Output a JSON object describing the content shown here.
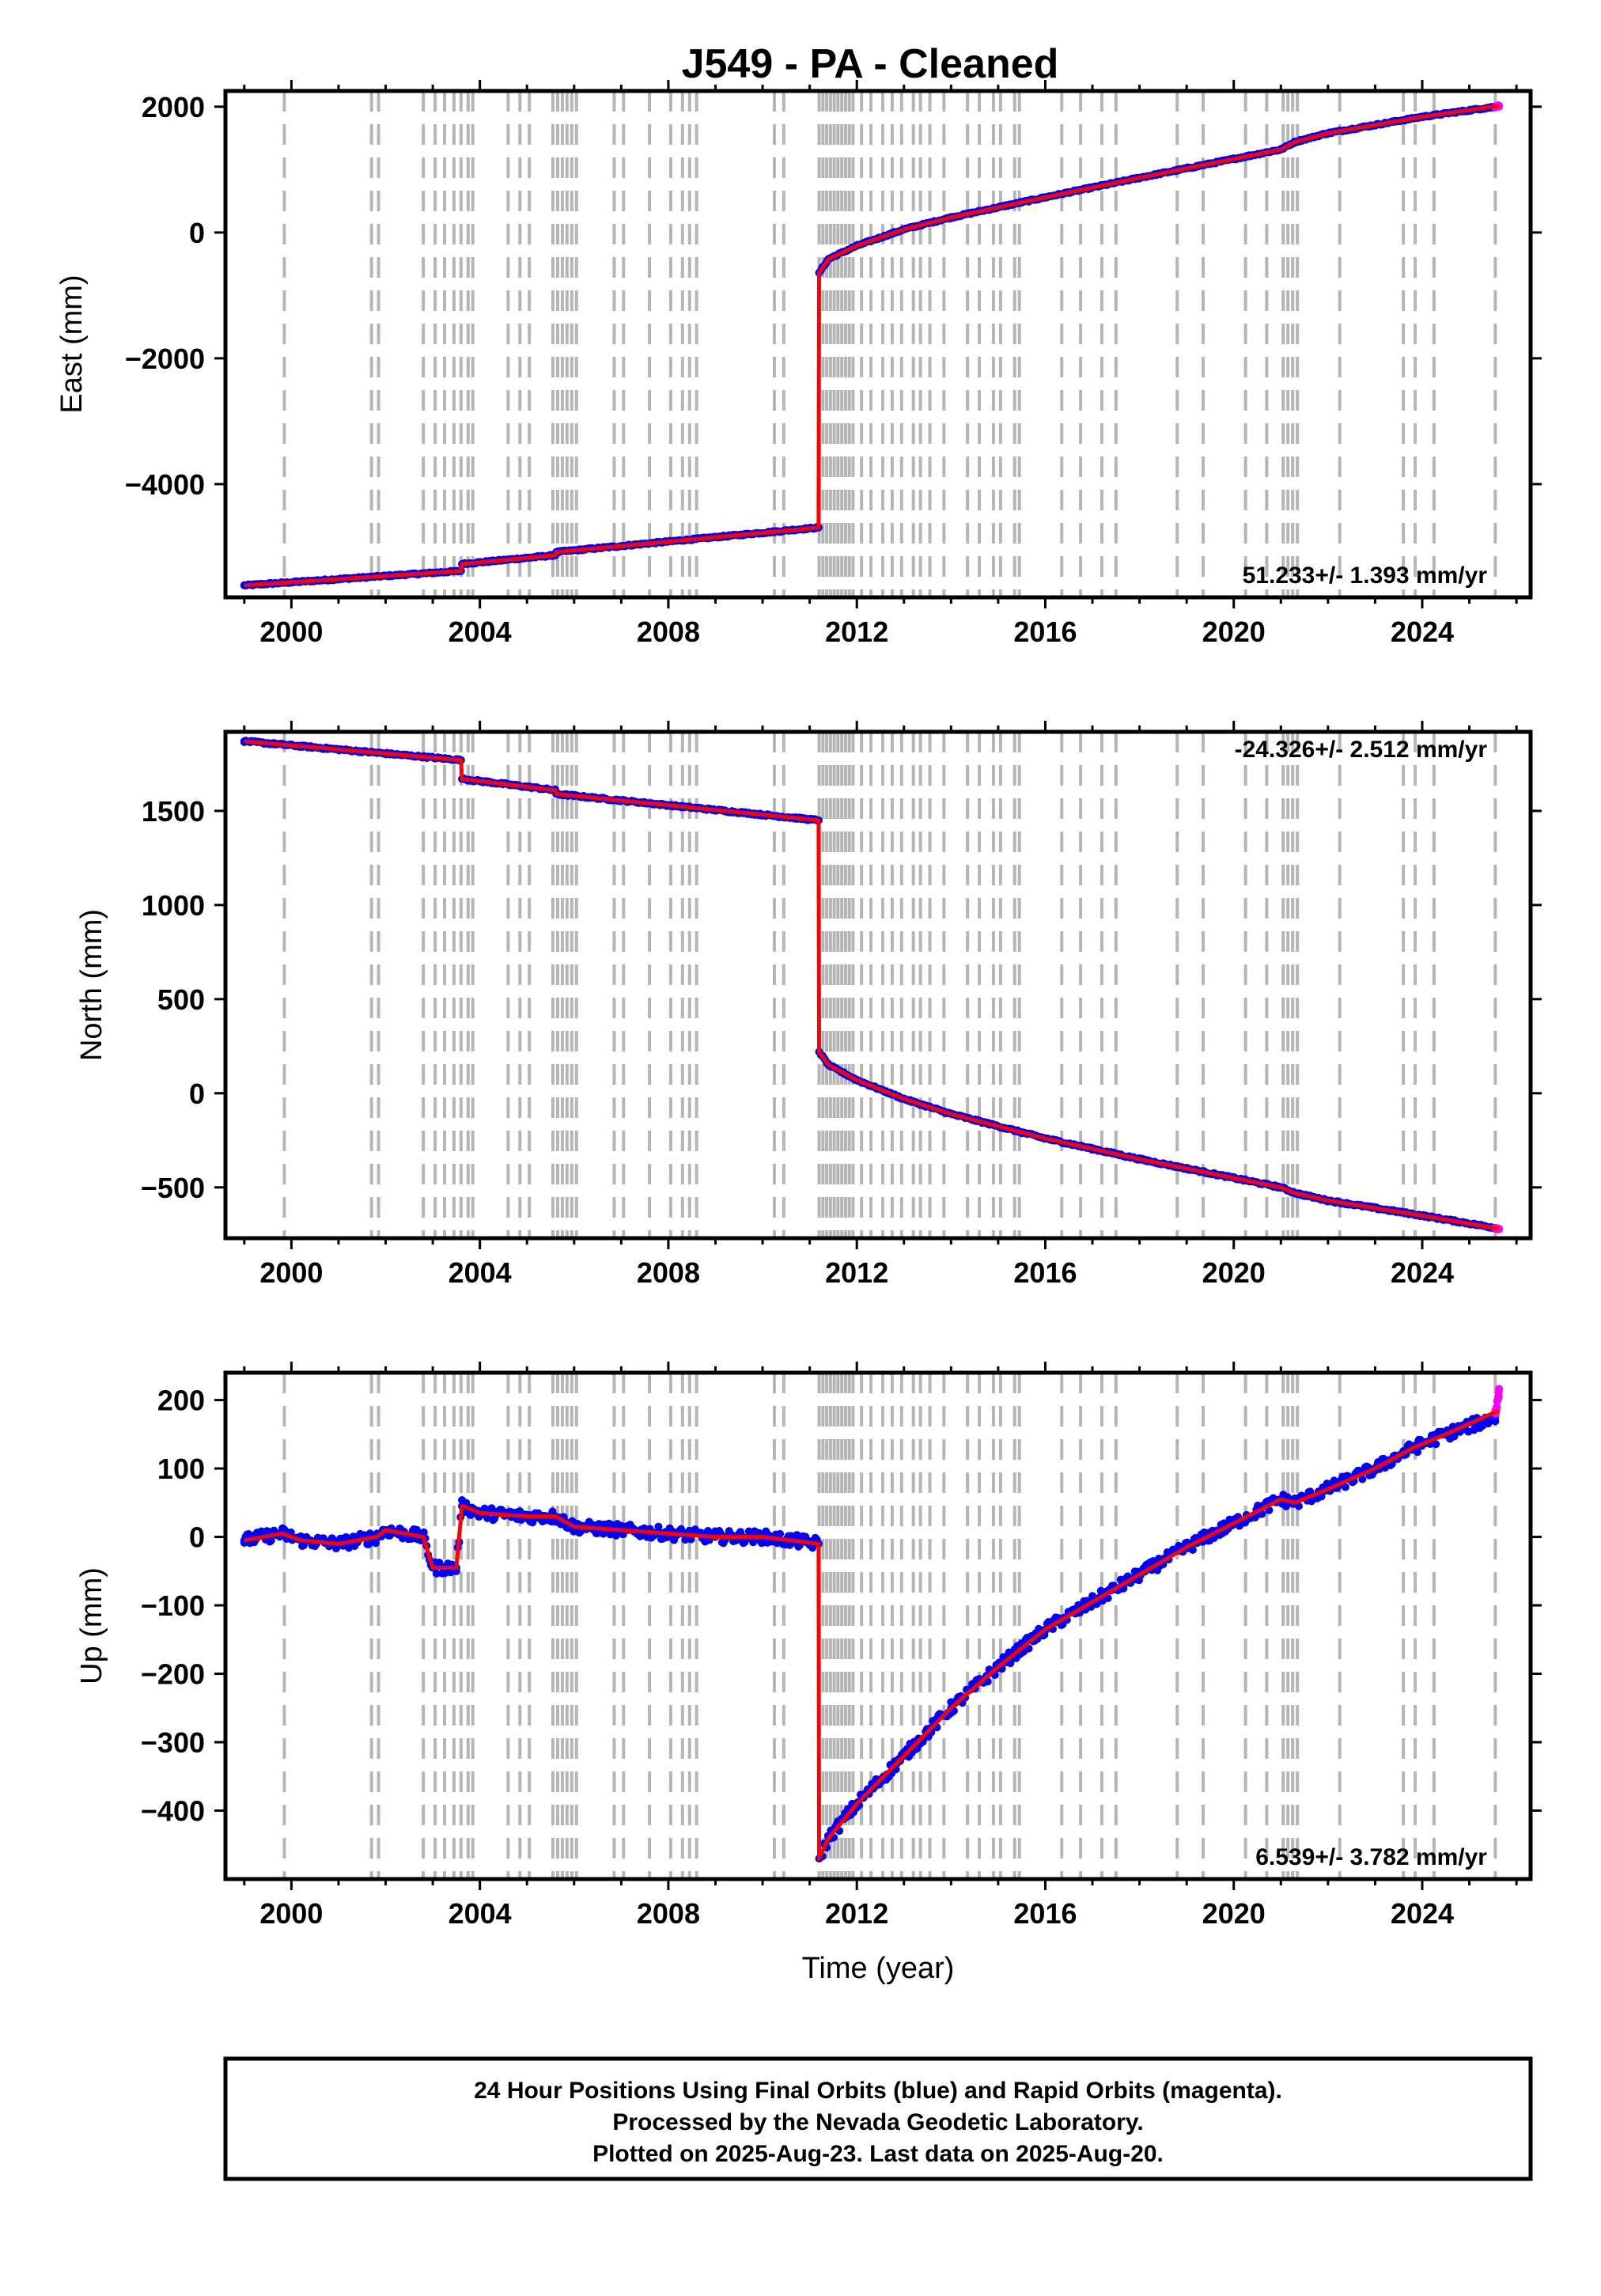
{
  "title": "J549  - PA - Cleaned",
  "colors": {
    "final_orbit_points": "#0000ff",
    "rapid_orbit_points": "#ff00ff",
    "model_line": "#ff0000",
    "event_lines": "#b5b5b5",
    "frame": "#000000"
  },
  "footer": {
    "line1": "24 Hour Positions Using Final Orbits (blue) and Rapid Orbits (magenta).",
    "line2": "Processed by the Nevada Geodetic Laboratory.",
    "line3": "Plotted on 2025-Aug-23. Last data on 2025-Aug-20."
  },
  "chart_data": [
    {
      "type": "scatter",
      "component": "east",
      "title": "J549  - PA - Cleaned",
      "ylabel": "East (mm)",
      "xlabel": "",
      "xlim": [
        1998.6,
        2026.3
      ],
      "ylim": [
        -5800,
        2250
      ],
      "xticks": [
        2000,
        2004,
        2008,
        2012,
        2016,
        2020,
        2024
      ],
      "yticks": [
        2000,
        0,
        -2000,
        -4000
      ],
      "ytick_labels": [
        "2000",
        "0",
        "−2000",
        "−4000"
      ],
      "rate_label": "51.233+/- 1.393 mm/yr",
      "rate_position": "bottom-right",
      "noise": 12,
      "series": [
        {
          "name": "Final Orbits",
          "color": "#0000ff",
          "role": "points",
          "x": [
            1999.0,
            2003.6,
            2003.62,
            2005.6,
            2005.62,
            2011.19,
            2011.2,
            2011.4,
            2012.0,
            2013.0,
            2014.0,
            2016.0,
            2018.0,
            2020.0,
            2021.0,
            2021.3,
            2022.0,
            2024.0,
            2025.55
          ],
          "y": [
            -5610,
            -5380,
            -5270,
            -5130,
            -5080,
            -4690,
            -640,
            -420,
            -210,
            50,
            240,
            560,
            870,
            1170,
            1320,
            1440,
            1580,
            1840,
            2000
          ]
        },
        {
          "name": "Rapid Orbits",
          "color": "#ff00ff",
          "role": "points",
          "x": [
            2025.55,
            2025.63
          ],
          "y": [
            2000,
            2015
          ]
        },
        {
          "name": "Model",
          "color": "#ff0000",
          "role": "line",
          "x": [
            1999.0,
            2003.6,
            2003.62,
            2005.6,
            2005.62,
            2011.19,
            2011.2,
            2011.4,
            2012.0,
            2013.0,
            2014.0,
            2016.0,
            2018.0,
            2020.0,
            2021.0,
            2021.3,
            2022.0,
            2024.0,
            2025.63
          ],
          "y": [
            -5610,
            -5380,
            -5270,
            -5130,
            -5080,
            -4690,
            -640,
            -420,
            -210,
            50,
            240,
            560,
            870,
            1170,
            1320,
            1440,
            1580,
            1840,
            2015
          ]
        }
      ]
    },
    {
      "type": "scatter",
      "component": "north",
      "ylabel": "North (mm)",
      "xlabel": "",
      "xlim": [
        1998.6,
        2026.3
      ],
      "ylim": [
        -770,
        1920
      ],
      "xticks": [
        2000,
        2004,
        2008,
        2012,
        2016,
        2020,
        2024
      ],
      "yticks": [
        1500,
        1000,
        500,
        0,
        -500
      ],
      "ytick_labels": [
        "1500",
        "1000",
        "500",
        "0",
        "−500"
      ],
      "rate_label": "-24.326+/- 2.512 mm/yr",
      "rate_position": "top-right",
      "noise": 5,
      "series": [
        {
          "name": "Final Orbits",
          "color": "#0000ff",
          "role": "points",
          "x": [
            1999.0,
            2003.6,
            2003.62,
            2005.6,
            2005.62,
            2011.19,
            2011.2,
            2011.4,
            2012.0,
            2013.0,
            2014.0,
            2016.0,
            2018.0,
            2020.0,
            2021.0,
            2021.3,
            2022.0,
            2024.0,
            2025.55
          ],
          "y": [
            1870,
            1770,
            1670,
            1610,
            1590,
            1450,
            220,
            150,
            70,
            -30,
            -110,
            -240,
            -350,
            -450,
            -500,
            -530,
            -570,
            -650,
            -715
          ]
        },
        {
          "name": "Rapid Orbits",
          "color": "#ff00ff",
          "role": "points",
          "x": [
            2025.55,
            2025.63
          ],
          "y": [
            -715,
            -720
          ]
        },
        {
          "name": "Model",
          "color": "#ff0000",
          "role": "line",
          "x": [
            1999.0,
            2003.6,
            2003.62,
            2005.6,
            2005.62,
            2011.19,
            2011.2,
            2011.4,
            2012.0,
            2013.0,
            2014.0,
            2016.0,
            2018.0,
            2020.0,
            2021.0,
            2021.3,
            2022.0,
            2024.0,
            2025.63
          ],
          "y": [
            1870,
            1770,
            1670,
            1610,
            1590,
            1450,
            220,
            150,
            70,
            -30,
            -110,
            -240,
            -350,
            -450,
            -500,
            -530,
            -570,
            -650,
            -720
          ]
        }
      ]
    },
    {
      "type": "scatter",
      "component": "up",
      "ylabel": "Up (mm)",
      "xlabel": "Time (year)",
      "xlim": [
        1998.6,
        2026.3
      ],
      "ylim": [
        -500,
        240
      ],
      "xticks": [
        2000,
        2004,
        2008,
        2012,
        2016,
        2020,
        2024
      ],
      "yticks": [
        200,
        100,
        0,
        -100,
        -200,
        -300,
        -400
      ],
      "ytick_labels": [
        "200",
        "100",
        "0",
        "−100",
        "−200",
        "−300",
        "−400"
      ],
      "rate_label": "6.539+/- 3.782 mm/yr",
      "rate_position": "bottom-right",
      "noise": 9,
      "series": [
        {
          "name": "Final Orbits",
          "color": "#0000ff",
          "role": "points",
          "x": [
            1999.0,
            1999.8,
            2000.2,
            2001.0,
            2001.8,
            2002.0,
            2002.8,
            2003.0,
            2003.5,
            2003.62,
            2003.64,
            2004.0,
            2005.0,
            2005.6,
            2006.0,
            2007.0,
            2008.0,
            2009.0,
            2010.0,
            2011.19,
            2011.2,
            2011.4,
            2012.0,
            2013.0,
            2014.0,
            2015.0,
            2016.0,
            2017.0,
            2018.0,
            2019.0,
            2020.0,
            2021.0,
            2021.3,
            2022.0,
            2023.0,
            2023.8,
            2024.5,
            2025.55
          ],
          "y": [
            -5,
            5,
            -5,
            -10,
            0,
            10,
            0,
            -45,
            -45,
            45,
            45,
            35,
            30,
            30,
            15,
            10,
            5,
            0,
            0,
            -10,
            -470,
            -440,
            -390,
            -320,
            -250,
            -190,
            -135,
            -95,
            -55,
            -15,
            20,
            55,
            50,
            70,
            100,
            130,
            150,
            175
          ]
        },
        {
          "name": "Rapid Orbits",
          "color": "#ff00ff",
          "role": "points",
          "x": [
            2025.55,
            2025.58,
            2025.6,
            2025.62,
            2025.63
          ],
          "y": [
            180,
            190,
            200,
            210,
            215
          ]
        },
        {
          "name": "Model",
          "color": "#ff0000",
          "role": "line",
          "x": [
            1999.0,
            1999.8,
            2000.2,
            2001.0,
            2001.8,
            2002.0,
            2002.8,
            2003.0,
            2003.5,
            2003.62,
            2003.64,
            2004.0,
            2005.0,
            2005.6,
            2006.0,
            2007.0,
            2008.0,
            2009.0,
            2010.0,
            2011.19,
            2011.2,
            2011.4,
            2012.0,
            2013.0,
            2014.0,
            2015.0,
            2016.0,
            2017.0,
            2018.0,
            2019.0,
            2020.0,
            2021.0,
            2021.3,
            2022.0,
            2023.0,
            2023.8,
            2024.5,
            2025.63
          ],
          "y": [
            -5,
            5,
            -5,
            -10,
            0,
            10,
            0,
            -45,
            -45,
            45,
            45,
            35,
            30,
            30,
            15,
            10,
            5,
            0,
            0,
            -10,
            -470,
            -440,
            -390,
            -320,
            -250,
            -190,
            -135,
            -95,
            -55,
            -15,
            20,
            55,
            50,
            70,
            100,
            130,
            150,
            185
          ]
        }
      ]
    }
  ],
  "event_years": [
    1999.85,
    2001.7,
    2001.85,
    2002.8,
    2003.05,
    2003.25,
    2003.45,
    2003.6,
    2003.75,
    2003.85,
    2004.6,
    2004.85,
    2005.05,
    2005.55,
    2005.65,
    2005.75,
    2005.85,
    2005.95,
    2006.05,
    2006.85,
    2007.05,
    2007.6,
    2008.05,
    2008.3,
    2008.45,
    2008.6,
    2010.25,
    2010.45,
    2011.2,
    2011.28,
    2011.36,
    2011.44,
    2011.52,
    2011.6,
    2011.68,
    2011.76,
    2011.84,
    2011.92,
    2012.1,
    2012.3,
    2012.55,
    2012.75,
    2012.95,
    2013.2,
    2013.35,
    2013.55,
    2013.85,
    2014.35,
    2014.6,
    2014.9,
    2015.05,
    2015.35,
    2015.45,
    2016.35,
    2016.75,
    2017.2,
    2017.5,
    2018.8,
    2019.35,
    2020.25,
    2020.7,
    2021.05,
    2021.15,
    2021.25,
    2021.35,
    2022.25,
    2023.6,
    2023.85,
    2024.25,
    2025.55
  ]
}
